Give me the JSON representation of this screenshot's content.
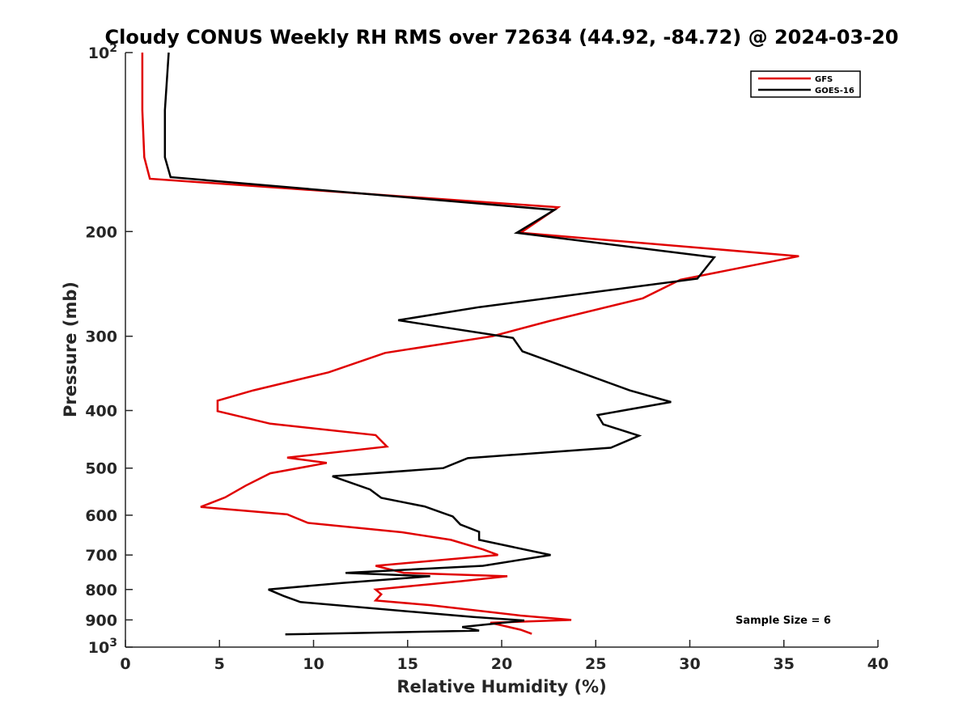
{
  "chart_data": {
    "type": "line",
    "title": "Cloudy CONUS Weekly RH RMS over 72634 (44.92, -84.72) @ 2024-03-20",
    "xlabel": "Relative Humidity (%)",
    "ylabel": "Pressure (mb)",
    "xlim": [
      0,
      40
    ],
    "ylim": [
      100,
      1000
    ],
    "yscale": "log",
    "y_reversed": true,
    "grid": false,
    "legend_position": "top-right",
    "xticks": [
      0,
      5,
      10,
      15,
      20,
      25,
      30,
      35,
      40
    ],
    "yticks": [
      {
        "value": 100,
        "base": "10",
        "exp": "2"
      },
      {
        "value": 200,
        "label": "200"
      },
      {
        "value": 300,
        "label": "300"
      },
      {
        "value": 400,
        "label": "400"
      },
      {
        "value": 500,
        "label": "500"
      },
      {
        "value": 600,
        "label": "600"
      },
      {
        "value": 700,
        "label": "700"
      },
      {
        "value": 800,
        "label": "800"
      },
      {
        "value": 900,
        "label": "900"
      },
      {
        "value": 1000,
        "base": "10",
        "exp": "3"
      }
    ],
    "annotation": "Sample Size = 6",
    "series": [
      {
        "name": "GFS",
        "color": "#e00000",
        "points": [
          [
            0.9,
            100
          ],
          [
            0.9,
            125
          ],
          [
            1.0,
            150
          ],
          [
            1.3,
            163
          ],
          [
            23.0,
            182
          ],
          [
            21.0,
            201
          ],
          [
            35.8,
            220
          ],
          [
            29.5,
            241
          ],
          [
            27.5,
            259
          ],
          [
            22.5,
            283
          ],
          [
            19.5,
            300
          ],
          [
            13.8,
            320
          ],
          [
            10.8,
            345
          ],
          [
            6.8,
            370
          ],
          [
            4.9,
            385
          ],
          [
            4.9,
            401
          ],
          [
            7.7,
            421
          ],
          [
            13.3,
            440
          ],
          [
            13.9,
            460
          ],
          [
            8.6,
            480
          ],
          [
            10.7,
            490
          ],
          [
            7.7,
            510
          ],
          [
            6.4,
            535
          ],
          [
            5.3,
            560
          ],
          [
            4.0,
            581
          ],
          [
            8.6,
            598
          ],
          [
            9.7,
            618
          ],
          [
            14.7,
            641
          ],
          [
            17.3,
            660
          ],
          [
            19.0,
            685
          ],
          [
            19.8,
            700
          ],
          [
            13.3,
            730
          ],
          [
            14.8,
            750
          ],
          [
            20.3,
            760
          ],
          [
            17.8,
            775
          ],
          [
            13.3,
            800
          ],
          [
            13.6,
            815
          ],
          [
            13.3,
            835
          ],
          [
            16.2,
            850
          ],
          [
            21.0,
            885
          ],
          [
            23.7,
            900
          ],
          [
            19.4,
            910
          ],
          [
            21.0,
            935
          ],
          [
            21.6,
            950
          ]
        ]
      },
      {
        "name": "GOES-16",
        "color": "#000000",
        "points": [
          [
            2.3,
            100
          ],
          [
            2.1,
            125
          ],
          [
            2.1,
            150
          ],
          [
            2.4,
            162
          ],
          [
            22.8,
            184
          ],
          [
            20.8,
            201
          ],
          [
            31.3,
            221
          ],
          [
            30.4,
            240
          ],
          [
            18.8,
            268
          ],
          [
            14.5,
            282
          ],
          [
            20.6,
            302
          ],
          [
            21.1,
            318
          ],
          [
            26.8,
            370
          ],
          [
            29.0,
            387
          ],
          [
            25.1,
            407
          ],
          [
            25.4,
            422
          ],
          [
            27.3,
            441
          ],
          [
            25.8,
            462
          ],
          [
            18.2,
            481
          ],
          [
            16.9,
            500
          ],
          [
            11.0,
            516
          ],
          [
            13.0,
            543
          ],
          [
            13.6,
            561
          ],
          [
            15.9,
            580
          ],
          [
            17.4,
            603
          ],
          [
            17.8,
            622
          ],
          [
            18.8,
            640
          ],
          [
            18.8,
            660
          ],
          [
            22.6,
            700
          ],
          [
            19.0,
            730
          ],
          [
            11.7,
            750
          ],
          [
            16.2,
            760
          ],
          [
            11.5,
            780
          ],
          [
            7.6,
            800
          ],
          [
            8.4,
            820
          ],
          [
            9.3,
            840
          ],
          [
            18.5,
            890
          ],
          [
            21.2,
            902
          ],
          [
            17.9,
            925
          ],
          [
            18.8,
            938
          ],
          [
            8.5,
            952
          ]
        ]
      }
    ]
  }
}
